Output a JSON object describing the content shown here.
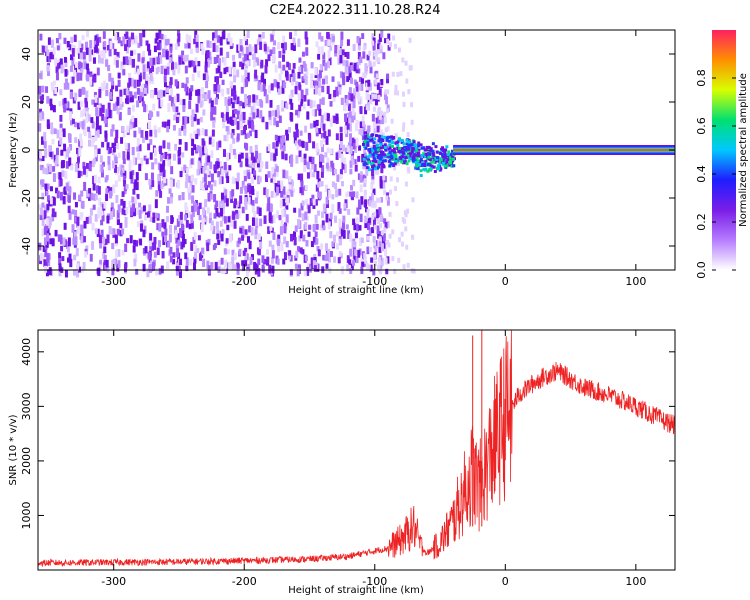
{
  "title": "C2E4.2022.311.10.28.R24",
  "colors": {
    "snr_line": "#ee2222",
    "spectrum_base": "#6a1ee6",
    "colormap": [
      "#ffffff",
      "#b57cff",
      "#7a1ee8",
      "#1e1eff",
      "#00c8ff",
      "#00e070",
      "#d8ff00",
      "#ff9000",
      "#ff2060"
    ]
  },
  "chart_data": [
    {
      "type": "heatmap",
      "name": "spectrogram",
      "title": "C2E4.2022.311.10.28.R24",
      "xlabel": "Height of straight line (km)",
      "ylabel": "Frequency (Hz)",
      "xlim": [
        -358,
        130
      ],
      "ylim": [
        -50,
        50
      ],
      "x_ticks": [
        -300,
        -200,
        -100,
        0,
        100
      ],
      "y_ticks": [
        -40,
        -20,
        0,
        20,
        40
      ],
      "colorbar": {
        "label": "Normalized spectral amplitude",
        "range": [
          0.0,
          1.0
        ],
        "ticks": [
          0.0,
          0.2,
          0.4,
          0.6,
          0.8
        ]
      },
      "features": [
        {
          "region": "noise",
          "x_range": [
            -358,
            -110
          ],
          "freq_range": [
            -50,
            50
          ],
          "amplitude": 0.2
        },
        {
          "region": "transition",
          "x_range": [
            -110,
            -40
          ],
          "freq_center": 0,
          "amplitude": 0.5
        },
        {
          "region": "carrier",
          "x_range": [
            -40,
            130
          ],
          "freq_center": 0,
          "amplitude": 0.9
        }
      ]
    },
    {
      "type": "line",
      "name": "snr",
      "xlabel": "Height of straight line (km)",
      "ylabel": "SNR (10 * v/v)",
      "xlim": [
        -358,
        130
      ],
      "ylim": [
        0,
        4400
      ],
      "x_ticks": [
        -300,
        -200,
        -100,
        0,
        100
      ],
      "y_ticks": [
        1000,
        2000,
        3000,
        4000
      ],
      "series": [
        {
          "x": [
            -358,
            -300,
            -250,
            -200,
            -150,
            -120,
            -100,
            -90,
            -80,
            -70,
            -65,
            -60,
            -50,
            -40,
            -30,
            -25,
            -20,
            -10,
            0,
            10,
            20,
            30,
            40,
            50,
            60,
            80,
            100,
            120,
            130
          ],
          "values": [
            130,
            140,
            150,
            170,
            200,
            250,
            350,
            400,
            550,
            800,
            450,
            300,
            500,
            900,
            1500,
            1800,
            1500,
            2200,
            2800,
            3200,
            3400,
            3550,
            3650,
            3500,
            3350,
            3200,
            3000,
            2750,
            2650
          ],
          "spikes": [
            {
              "x": -18,
              "value": 4400
            },
            {
              "x": -25,
              "value": 4300
            }
          ]
        }
      ]
    }
  ]
}
